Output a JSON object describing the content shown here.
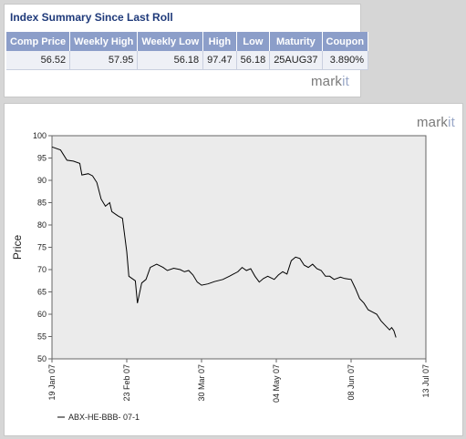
{
  "summary": {
    "title": "Index Summary Since Last Roll",
    "headers": [
      "Comp Price",
      "Weekly High",
      "Weekly Low",
      "High",
      "Low",
      "Maturity",
      "Coupon"
    ],
    "row": [
      "56.52",
      "57.95",
      "56.18",
      "97.47",
      "56.18",
      "25AUG37",
      "3.890%"
    ],
    "logo_main": "mark",
    "logo_accent": "it"
  },
  "chart": {
    "logo_main": "mark",
    "logo_accent": "it"
  },
  "chart_data": {
    "type": "line",
    "title": "",
    "xlabel": "",
    "ylabel": "Price",
    "ylim": [
      50,
      100
    ],
    "yticks": [
      "50",
      "55",
      "60",
      "65",
      "70",
      "75",
      "80",
      "85",
      "90",
      "95",
      "100"
    ],
    "xticks": [
      "19 Jan 07",
      "23 Feb 07",
      "30 Mar 07",
      "04 May 07",
      "08 Jun 07",
      "13 Jul 07"
    ],
    "xlim": [
      "2007-01-19",
      "2007-07-13"
    ],
    "grid": false,
    "legend_position": "bottom-left",
    "series": [
      {
        "name": "ABX-HE-BBB- 07-1",
        "color": "#000000",
        "points": [
          [
            "2007-01-19",
            97.5
          ],
          [
            "2007-01-23",
            96.8
          ],
          [
            "2007-01-26",
            94.5
          ],
          [
            "2007-01-29",
            94.3
          ],
          [
            "2007-02-01",
            93.8
          ],
          [
            "2007-02-02",
            91.2
          ],
          [
            "2007-02-05",
            91.5
          ],
          [
            "2007-02-07",
            91.0
          ],
          [
            "2007-02-09",
            89.5
          ],
          [
            "2007-02-11",
            85.8
          ],
          [
            "2007-02-13",
            84.2
          ],
          [
            "2007-02-15",
            85.0
          ],
          [
            "2007-02-16",
            83.0
          ],
          [
            "2007-02-19",
            82.0
          ],
          [
            "2007-02-21",
            81.5
          ],
          [
            "2007-02-23",
            74.0
          ],
          [
            "2007-02-24",
            68.5
          ],
          [
            "2007-02-27",
            67.5
          ],
          [
            "2007-02-28",
            62.5
          ],
          [
            "2007-03-02",
            67.0
          ],
          [
            "2007-03-04",
            67.8
          ],
          [
            "2007-03-06",
            70.5
          ],
          [
            "2007-03-09",
            71.2
          ],
          [
            "2007-03-12",
            70.5
          ],
          [
            "2007-03-14",
            69.8
          ],
          [
            "2007-03-17",
            70.3
          ],
          [
            "2007-03-20",
            70.0
          ],
          [
            "2007-03-22",
            69.5
          ],
          [
            "2007-03-24",
            69.8
          ],
          [
            "2007-03-26",
            68.8
          ],
          [
            "2007-03-28",
            67.2
          ],
          [
            "2007-03-30",
            66.5
          ],
          [
            "2007-04-02",
            66.8
          ],
          [
            "2007-04-05",
            67.3
          ],
          [
            "2007-04-09",
            67.8
          ],
          [
            "2007-04-12",
            68.5
          ],
          [
            "2007-04-16",
            69.5
          ],
          [
            "2007-04-18",
            70.5
          ],
          [
            "2007-04-20",
            69.8
          ],
          [
            "2007-04-22",
            70.2
          ],
          [
            "2007-04-24",
            68.5
          ],
          [
            "2007-04-26",
            67.2
          ],
          [
            "2007-04-28",
            68.0
          ],
          [
            "2007-04-30",
            68.5
          ],
          [
            "2007-05-03",
            67.8
          ],
          [
            "2007-05-05",
            68.8
          ],
          [
            "2007-05-07",
            69.5
          ],
          [
            "2007-05-09",
            69.0
          ],
          [
            "2007-05-11",
            72.0
          ],
          [
            "2007-05-13",
            72.8
          ],
          [
            "2007-05-15",
            72.5
          ],
          [
            "2007-05-17",
            71.0
          ],
          [
            "2007-05-19",
            70.5
          ],
          [
            "2007-05-21",
            71.2
          ],
          [
            "2007-05-23",
            70.2
          ],
          [
            "2007-05-25",
            69.8
          ],
          [
            "2007-05-27",
            68.5
          ],
          [
            "2007-05-29",
            68.5
          ],
          [
            "2007-05-31",
            67.8
          ],
          [
            "2007-06-03",
            68.3
          ],
          [
            "2007-06-05",
            68.0
          ],
          [
            "2007-06-08",
            67.8
          ],
          [
            "2007-06-10",
            65.8
          ],
          [
            "2007-06-12",
            63.5
          ],
          [
            "2007-06-14",
            62.5
          ],
          [
            "2007-06-16",
            61.0
          ],
          [
            "2007-06-18",
            60.5
          ],
          [
            "2007-06-20",
            60.0
          ],
          [
            "2007-06-22",
            58.5
          ],
          [
            "2007-06-24",
            57.5
          ],
          [
            "2007-06-26",
            56.5
          ],
          [
            "2007-06-27",
            57.0
          ],
          [
            "2007-06-28",
            56.3
          ],
          [
            "2007-06-29",
            54.8
          ]
        ]
      }
    ]
  }
}
